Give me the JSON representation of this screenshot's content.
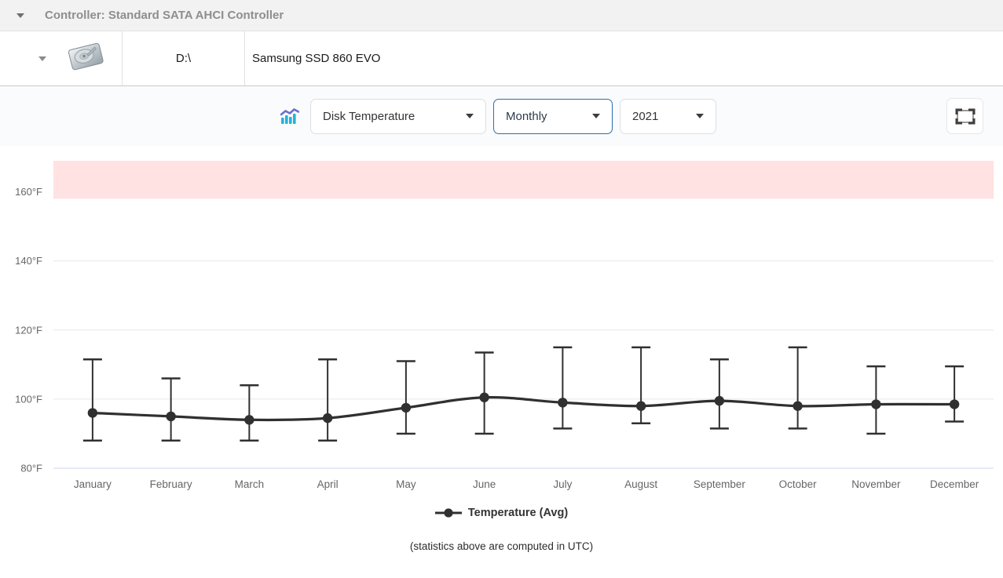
{
  "header": {
    "title": "Controller: Standard SATA AHCI Controller"
  },
  "drive": {
    "letter": "D:\\",
    "model": "Samsung SSD 860 EVO"
  },
  "controls": {
    "metric": "Disk Temperature",
    "period": "Monthly",
    "year": "2021"
  },
  "footer": {
    "note": "(statistics above are computed in UTC)"
  },
  "colors": {
    "focus_border": "#2a6fad",
    "grid": "#e8e8e8",
    "axis_line": "#ccd6eb",
    "plot_band": "#ffe2e1",
    "series": "#303030",
    "axis_label": "#666666"
  },
  "chart_data": {
    "type": "line",
    "title": "",
    "xlabel": "",
    "ylabel": "",
    "categories": [
      "January",
      "February",
      "March",
      "April",
      "May",
      "June",
      "July",
      "August",
      "September",
      "October",
      "November",
      "December"
    ],
    "series": [
      {
        "name": "Temperature (Avg)",
        "color": "#303030",
        "values": [
          96,
          95,
          94,
          94.5,
          97.5,
          100.5,
          99,
          98,
          99.5,
          98,
          98.5,
          98.5
        ],
        "error_high": [
          111.5,
          106,
          104,
          111.5,
          111,
          113.5,
          115,
          115,
          111.5,
          115,
          109.5,
          109.5
        ],
        "error_low": [
          88,
          88,
          88,
          88,
          90,
          90,
          91.5,
          93,
          91.5,
          91.5,
          90,
          93.5
        ]
      }
    ],
    "unit": "°F",
    "ylim": [
      80,
      169
    ],
    "yticks": [
      {
        "value": 80,
        "label": "80°F"
      },
      {
        "value": 100,
        "label": "100°F"
      },
      {
        "value": 120,
        "label": "120°F"
      },
      {
        "value": 140,
        "label": "140°F"
      },
      {
        "value": 160,
        "label": "160°F"
      }
    ],
    "plot_band": {
      "from": 158,
      "to": 169,
      "color": "#ffe2e1"
    },
    "grid": true,
    "legend_position": "bottom",
    "legend": [
      "Temperature (Avg)"
    ]
  }
}
